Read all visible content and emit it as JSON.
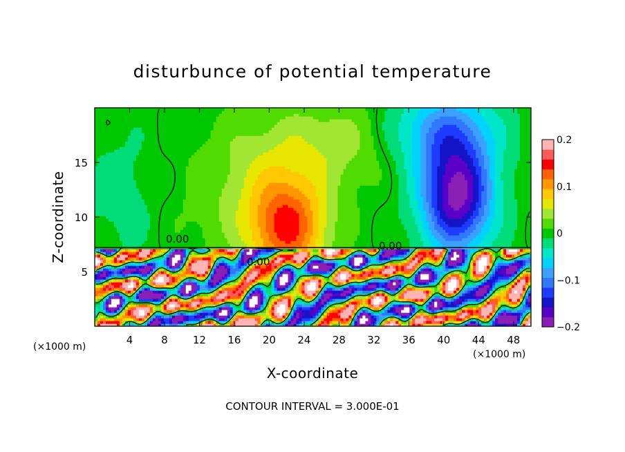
{
  "chart_data": {
    "type": "heatmap",
    "title": "disturbunce of potential temperature",
    "xlabel": "X-coordinate",
    "ylabel": "Z-coordinate",
    "x_unit": "(×1000 m)",
    "y_unit": "(×1000 m)",
    "xlim": [
      0,
      50
    ],
    "ylim": [
      0,
      20
    ],
    "x_ticks": [
      "4",
      "8",
      "12",
      "16",
      "20",
      "24",
      "28",
      "32",
      "36",
      "40",
      "44",
      "48"
    ],
    "y_ticks": [
      "5",
      "10",
      "15"
    ],
    "colorbar": {
      "range": [
        -0.2,
        0.2
      ],
      "tick_labels": [
        "0.2",
        "0.1",
        "0",
        "−0.1",
        "−0.2"
      ]
    },
    "contour_labels": [
      "0.00",
      "0.00",
      "0.00"
    ],
    "contour_interval": "CONTOUR INTERVAL = 3.000E-01",
    "fields": {
      "anomalies": [
        {
          "x": 22,
          "z": 9,
          "amp": 0.14,
          "sx": 4.5,
          "sz": 4.5
        },
        {
          "x": 20,
          "z": 15,
          "amp": 0.04,
          "sx": 7,
          "sz": 5
        },
        {
          "x": 28,
          "z": 17,
          "amp": 0.035,
          "sx": 6,
          "sz": 4
        },
        {
          "x": 41.5,
          "z": 12,
          "amp": -0.19,
          "sx": 4,
          "sz": 5
        },
        {
          "x": 40,
          "z": 18,
          "amp": -0.08,
          "sx": 6,
          "sz": 3.5
        },
        {
          "x": 3,
          "z": 12,
          "amp": -0.02,
          "sx": 4,
          "sz": 6
        },
        {
          "x": 14,
          "z": 10,
          "amp": 0.015,
          "sx": 5,
          "sz": 5
        }
      ],
      "low_layer_top_z": 7.2
    }
  },
  "colors": {
    "scale": [
      "#8a1fb6",
      "#5a00c8",
      "#1414c8",
      "#1e3cff",
      "#3278ff",
      "#3ca0ff",
      "#00d2ff",
      "#00e6c8",
      "#00dc78",
      "#00c800",
      "#50dc00",
      "#a0e632",
      "#e6e600",
      "#ffc800",
      "#ff9600",
      "#ff6400",
      "#ff0000",
      "#ff5a5a",
      "#ffb4b4"
    ]
  }
}
